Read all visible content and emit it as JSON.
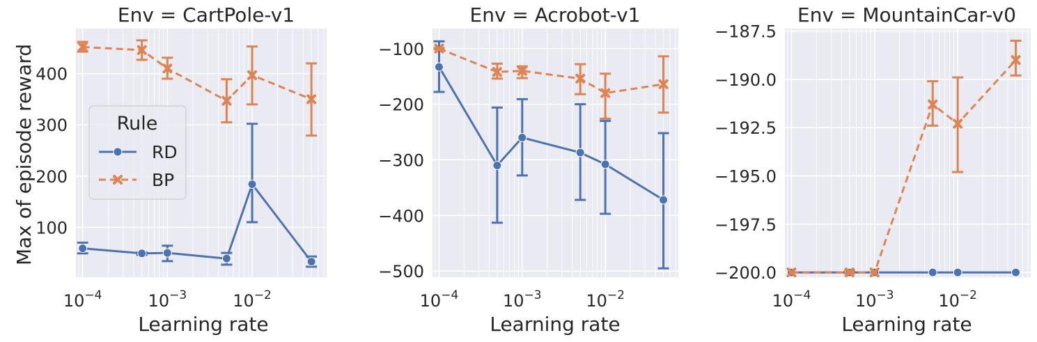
{
  "colors": {
    "RD": "#4c72b0",
    "BP": "#dd8452",
    "panel_bg": "#eaeaf2",
    "grid": "#ffffff"
  },
  "legend": {
    "title": "Rule",
    "entries": [
      {
        "name": "RD",
        "marker": "circle",
        "line": "solid"
      },
      {
        "name": "BP",
        "marker": "x",
        "line": "dashed"
      }
    ]
  },
  "chart_data": [
    {
      "type": "line",
      "title": "Env = CartPole-v1",
      "xlabel": "Learning rate",
      "ylabel": "Max of episode reward",
      "xscale": "log",
      "xlim": [
        8.33e-05,
        0.0756
      ],
      "ylim": [
        2.5,
        488
      ],
      "xticks": [
        0.0001,
        0.001,
        0.01
      ],
      "xtick_labels": [
        "10^-4",
        "10^-3",
        "10^-2"
      ],
      "yticks": [
        100,
        200,
        300,
        400
      ],
      "ytick_labels": [
        "100",
        "200",
        "300",
        "400"
      ],
      "grid": true,
      "legend_position": "center-left",
      "series": [
        {
          "name": "RD",
          "x": [
            0.0001,
            0.0005,
            0.001,
            0.005,
            0.01,
            0.05
          ],
          "y": [
            59,
            49,
            50,
            39,
            184,
            33
          ],
          "err_low": [
            49,
            46,
            34,
            27,
            110,
            23
          ],
          "err_high": [
            70,
            51,
            64,
            50,
            302,
            43
          ]
        },
        {
          "name": "BP",
          "x": [
            0.0001,
            0.0005,
            0.001,
            0.005,
            0.01,
            0.05
          ],
          "y": [
            452,
            446,
            410,
            347,
            397,
            350
          ],
          "err_low": [
            443,
            427,
            390,
            305,
            340,
            279
          ],
          "err_high": [
            462,
            465,
            431,
            389,
            453,
            420
          ]
        }
      ]
    },
    {
      "type": "line",
      "title": "Env = Acrobot-v1",
      "xlabel": "Learning rate",
      "ylabel": "",
      "xscale": "log",
      "xlim": [
        8.33e-05,
        0.0756
      ],
      "ylim": [
        -511,
        -64
      ],
      "xticks": [
        0.0001,
        0.001,
        0.01
      ],
      "xtick_labels": [
        "10^-4",
        "10^-3",
        "10^-2"
      ],
      "yticks": [
        -500,
        -400,
        -300,
        -200,
        -100
      ],
      "ytick_labels": [
        "−500",
        "−400",
        "−300",
        "−200",
        "−100"
      ],
      "grid": true,
      "series": [
        {
          "name": "RD",
          "x": [
            0.0001,
            0.0005,
            0.001,
            0.005,
            0.01,
            0.05
          ],
          "y": [
            -133,
            -310,
            -260,
            -287,
            -308,
            -372
          ],
          "err_low": [
            -178,
            -413,
            -328,
            -372,
            -397,
            -495
          ],
          "err_high": [
            -87,
            -206,
            -191,
            -200,
            -230,
            -252
          ]
        },
        {
          "name": "BP",
          "x": [
            0.0001,
            0.0005,
            0.001,
            0.005,
            0.01,
            0.05
          ],
          "y": [
            -100,
            -142,
            -140,
            -154,
            -180,
            -164
          ],
          "err_low": [
            -101,
            -154,
            -153,
            -182,
            -226,
            -215
          ],
          "err_high": [
            -99,
            -127,
            -132,
            -128,
            -145,
            -114
          ]
        }
      ]
    },
    {
      "type": "line",
      "title": "Env = MountainCar-v0",
      "xlabel": "Learning rate",
      "ylabel": "",
      "xscale": "log",
      "xlim": [
        8.33e-05,
        0.0756
      ],
      "ylim": [
        -200.25,
        -187.37
      ],
      "xticks": [
        0.0001,
        0.001,
        0.01
      ],
      "xtick_labels": [
        "10^-4",
        "10^-3",
        "10^-2"
      ],
      "yticks": [
        -200.0,
        -197.5,
        -195.0,
        -192.5,
        -190.0,
        -187.5
      ],
      "ytick_labels": [
        "−200.0",
        "−197.5",
        "−195.0",
        "−192.5",
        "−190.0",
        "−187.5"
      ],
      "grid": true,
      "series": [
        {
          "name": "RD",
          "x": [
            0.0001,
            0.0005,
            0.001,
            0.005,
            0.01,
            0.05
          ],
          "y": [
            -200,
            -200,
            -200,
            -200,
            -200,
            -200
          ],
          "err_low": [
            -200,
            -200,
            -200,
            -200,
            -200,
            -200
          ],
          "err_high": [
            -200,
            -200,
            -200,
            -200,
            -200,
            -200
          ]
        },
        {
          "name": "BP",
          "x": [
            0.0001,
            0.0005,
            0.001,
            0.005,
            0.01,
            0.05
          ],
          "y": [
            -200,
            -200,
            -200,
            -191.3,
            -192.3,
            -189
          ],
          "err_low": [
            -200,
            -200.05,
            -200,
            -192.4,
            -194.8,
            -189.8
          ],
          "err_high": [
            -200,
            -199.9,
            -200,
            -190.1,
            -189.9,
            -188
          ]
        }
      ]
    }
  ]
}
